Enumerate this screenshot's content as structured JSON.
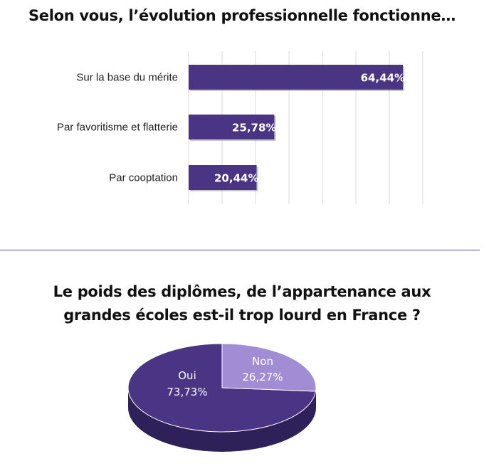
{
  "chart_data": [
    {
      "type": "bar",
      "orientation": "horizontal",
      "title": "Selon vous, l’évolution professionnelle fonctionne…",
      "categories": [
        "Sur la base du mérite",
        "Par favoritisme et flatterie",
        "Par cooptation"
      ],
      "values": [
        64.44,
        25.78,
        20.44
      ],
      "value_labels": [
        "64,44%",
        "25,78%",
        "20,44%"
      ],
      "xlim": [
        0,
        70
      ],
      "grid": true,
      "color": "#4a3584"
    },
    {
      "type": "pie",
      "title_lines": [
        "Le poids des diplômes, de l’appartenance aux",
        "grandes écoles est-il trop lourd en France ?"
      ],
      "slices": [
        {
          "label": "Non",
          "value": 26.27,
          "value_label": "26,27%",
          "color": "#a08dd4"
        },
        {
          "label": "Oui",
          "value": 73.73,
          "value_label": "73,73%",
          "color": "#4a3584"
        }
      ]
    }
  ]
}
